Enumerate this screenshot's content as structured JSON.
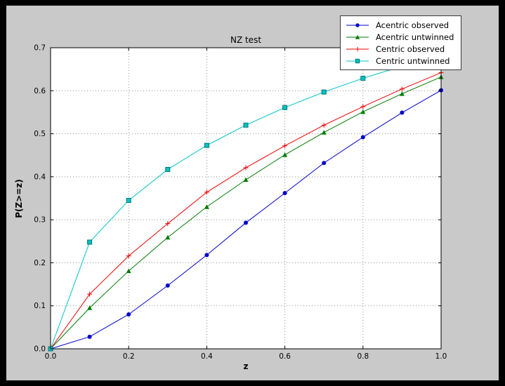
{
  "window": {
    "bg": "#000000"
  },
  "figure": {
    "bg": "#c9c9c9"
  },
  "chart_data": {
    "type": "line",
    "title": "NZ test",
    "xlabel": "z",
    "ylabel": "P(Z>=z)",
    "xlim": [
      0.0,
      1.0
    ],
    "ylim": [
      0.0,
      0.7
    ],
    "grid": true,
    "legend_position": "upper right",
    "plot_bg": "#ffffff",
    "xticks": [
      0.0,
      0.2,
      0.4,
      0.6,
      0.8,
      1.0
    ],
    "xtick_labels": [
      "0.0",
      "0.2",
      "0.4",
      "0.6",
      "0.8",
      "1.0"
    ],
    "yticks": [
      0.0,
      0.1,
      0.2,
      0.3,
      0.4,
      0.5,
      0.6,
      0.7
    ],
    "ytick_labels": [
      "0.0",
      "0.1",
      "0.2",
      "0.3",
      "0.4",
      "0.5",
      "0.6",
      "0.7"
    ],
    "x": [
      0.0,
      0.1,
      0.2,
      0.3,
      0.4,
      0.5,
      0.6,
      0.7,
      0.8,
      0.9,
      1.0
    ],
    "series": [
      {
        "name": "Acentric observed",
        "color": "#0000cd",
        "marker": "circle",
        "values": [
          0.0,
          0.028,
          0.08,
          0.147,
          0.218,
          0.293,
          0.362,
          0.432,
          0.492,
          0.549,
          0.601
        ]
      },
      {
        "name": "Acentric untwinned",
        "color": "#007a00",
        "marker": "triangle",
        "values": [
          0.0,
          0.095,
          0.181,
          0.259,
          0.33,
          0.393,
          0.451,
          0.503,
          0.551,
          0.593,
          0.632
        ]
      },
      {
        "name": "Centric observed",
        "color": "#ee0000",
        "marker": "plus",
        "values": [
          0.0,
          0.127,
          0.216,
          0.291,
          0.364,
          0.421,
          0.472,
          0.52,
          0.563,
          0.604,
          0.642
        ]
      },
      {
        "name": "Centric untwinned",
        "color": "#00c3c3",
        "marker": "square",
        "marker_edge": "#007474",
        "values": [
          0.0,
          0.248,
          0.345,
          0.417,
          0.473,
          0.52,
          0.561,
          0.597,
          0.629,
          0.657,
          0.683
        ]
      }
    ]
  }
}
